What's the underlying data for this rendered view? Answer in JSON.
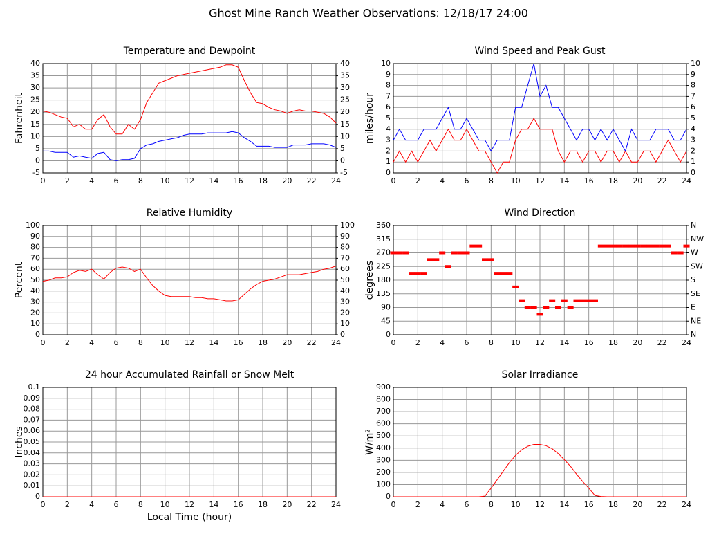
{
  "title": "Ghost Mine Ranch Weather Observations: 12/18/17 24:00",
  "chart_data": [
    {
      "type": "line",
      "title": "Temperature and Dewpoint",
      "ylabel": "Fahrenheit",
      "grid": true,
      "xlim": [
        0,
        24
      ],
      "xticks": [
        0,
        2,
        4,
        6,
        8,
        10,
        12,
        14,
        16,
        18,
        20,
        22,
        24
      ],
      "ylim": [
        -5,
        40
      ],
      "yticks": [
        -5,
        0,
        5,
        10,
        15,
        20,
        25,
        30,
        35,
        40
      ],
      "y2lim": [
        -5,
        40
      ],
      "y2ticks": [
        -5,
        0,
        5,
        10,
        15,
        20,
        25,
        30,
        35,
        40
      ],
      "x": [
        0,
        0.5,
        1,
        1.5,
        2,
        2.5,
        3,
        3.5,
        4,
        4.5,
        5,
        5.5,
        6,
        6.5,
        7,
        7.5,
        8,
        8.5,
        9,
        9.5,
        10,
        10.5,
        11,
        11.5,
        12,
        12.5,
        13,
        13.5,
        14,
        14.5,
        15,
        15.5,
        16,
        16.5,
        17,
        17.5,
        18,
        18.5,
        19,
        19.5,
        20,
        20.5,
        21,
        21.5,
        22,
        22.5,
        23,
        23.5,
        24
      ],
      "series": [
        {
          "color": "#ff0000",
          "values": [
            20.5,
            20,
            19,
            18,
            17.5,
            14,
            15,
            13,
            13,
            17,
            19,
            14,
            11,
            11,
            15,
            13,
            17,
            24,
            28,
            32,
            33,
            34,
            35,
            35.5,
            36,
            36.5,
            37,
            37.5,
            38,
            38.5,
            39.5,
            39.5,
            38.5,
            33,
            28,
            24,
            23.5,
            22,
            21,
            20.5,
            19.5,
            20.5,
            21,
            20.5,
            20.5,
            20,
            19.5,
            18,
            15.5
          ]
        },
        {
          "color": "#0000ff",
          "values": [
            4,
            4,
            3.5,
            3.5,
            3.5,
            1.5,
            2,
            1.5,
            1,
            3,
            3.5,
            0.5,
            0,
            0.5,
            0.5,
            1,
            5,
            6.5,
            7,
            8,
            8.5,
            9,
            9.5,
            10.5,
            11,
            11,
            11,
            11.5,
            11.5,
            11.5,
            11.5,
            12,
            11.5,
            9.5,
            8,
            6,
            6,
            6,
            5.5,
            5.5,
            5.5,
            6.5,
            6.5,
            6.5,
            7,
            7,
            7,
            6.5,
            5.5
          ]
        }
      ]
    },
    {
      "type": "line",
      "title": "Wind Speed and Peak Gust",
      "ylabel": "miles/hour",
      "grid": true,
      "xlim": [
        0,
        24
      ],
      "xticks": [
        0,
        2,
        4,
        6,
        8,
        10,
        12,
        14,
        16,
        18,
        20,
        22,
        24
      ],
      "ylim": [
        0,
        10
      ],
      "yticks": [
        0,
        1,
        2,
        3,
        4,
        5,
        6,
        7,
        8,
        9,
        10
      ],
      "y2lim": [
        0,
        10
      ],
      "y2ticks": [
        0,
        1,
        2,
        3,
        4,
        5,
        6,
        7,
        8,
        9,
        10
      ],
      "x": [
        0,
        0.5,
        1,
        1.5,
        2,
        2.5,
        3,
        3.5,
        4,
        4.5,
        5,
        5.5,
        6,
        6.5,
        7,
        7.5,
        8,
        8.5,
        9,
        9.5,
        10,
        10.5,
        11,
        11.5,
        12,
        12.5,
        13,
        13.5,
        14,
        14.5,
        15,
        15.5,
        16,
        16.5,
        17,
        17.5,
        18,
        18.5,
        19,
        19.5,
        20,
        20.5,
        21,
        21.5,
        22,
        22.5,
        23,
        23.5,
        24
      ],
      "series": [
        {
          "color": "#ff0000",
          "values": [
            1,
            2,
            1,
            2,
            1,
            2,
            3,
            2,
            3,
            4,
            3,
            3,
            4,
            3,
            2,
            2,
            1,
            0,
            1,
            1,
            3,
            4,
            4,
            5,
            4,
            4,
            4,
            2,
            1,
            2,
            2,
            1,
            2,
            2,
            1,
            2,
            2,
            1,
            2,
            1,
            1,
            2,
            2,
            1,
            2,
            3,
            2,
            1,
            2
          ]
        },
        {
          "color": "#0000ff",
          "values": [
            3,
            4,
            3,
            3,
            3,
            4,
            4,
            4,
            5,
            6,
            4,
            4,
            5,
            4,
            3,
            3,
            2,
            3,
            3,
            3,
            6,
            6,
            8,
            10,
            7,
            8,
            6,
            6,
            5,
            4,
            3,
            4,
            4,
            3,
            4,
            3,
            4,
            3,
            2,
            4,
            3,
            3,
            3,
            4,
            4,
            4,
            3,
            3,
            4
          ]
        }
      ]
    },
    {
      "type": "line",
      "title": "Relative Humidity",
      "ylabel": "Percent",
      "grid": true,
      "xlim": [
        0,
        24
      ],
      "xticks": [
        0,
        2,
        4,
        6,
        8,
        10,
        12,
        14,
        16,
        18,
        20,
        22,
        24
      ],
      "ylim": [
        0,
        100
      ],
      "yticks": [
        0,
        10,
        20,
        30,
        40,
        50,
        60,
        70,
        80,
        90,
        100
      ],
      "y2lim": [
        0,
        100
      ],
      "y2ticks": [
        0,
        10,
        20,
        30,
        40,
        50,
        60,
        70,
        80,
        90,
        100
      ],
      "x": [
        0,
        0.5,
        1,
        1.5,
        2,
        2.5,
        3,
        3.5,
        4,
        4.5,
        5,
        5.5,
        6,
        6.5,
        7,
        7.5,
        8,
        8.5,
        9,
        9.5,
        10,
        10.5,
        11,
        11.5,
        12,
        12.5,
        13,
        13.5,
        14,
        14.5,
        15,
        15.5,
        16,
        16.5,
        17,
        17.5,
        18,
        18.5,
        19,
        19.5,
        20,
        20.5,
        21,
        21.5,
        22,
        22.5,
        23,
        23.5,
        24
      ],
      "series": [
        {
          "color": "#ff0000",
          "values": [
            49,
            50,
            52,
            52,
            53,
            57,
            59,
            58,
            60,
            55,
            51,
            57,
            61,
            62,
            61,
            58,
            60,
            52,
            45,
            40,
            36,
            35,
            35,
            35,
            35,
            34,
            34,
            33,
            33,
            32,
            31,
            31,
            32,
            37,
            42,
            46,
            49,
            50,
            51,
            53,
            55,
            55,
            55,
            56,
            57,
            58,
            60,
            61,
            63
          ]
        }
      ]
    },
    {
      "type": "scatter",
      "title": "Wind Direction",
      "ylabel": "degrees",
      "grid": true,
      "xlim": [
        0,
        24
      ],
      "xticks": [
        0,
        2,
        4,
        6,
        8,
        10,
        12,
        14,
        16,
        18,
        20,
        22,
        24
      ],
      "ylim": [
        0,
        360
      ],
      "yticks": [
        0,
        45,
        90,
        135,
        180,
        225,
        270,
        315,
        360
      ],
      "y2lim": [
        0,
        360
      ],
      "y2ticks": [
        {
          "value": 0,
          "label": "N"
        },
        {
          "value": 45,
          "label": "NE"
        },
        {
          "value": 90,
          "label": "E"
        },
        {
          "value": 135,
          "label": "SE"
        },
        {
          "value": 180,
          "label": "S"
        },
        {
          "value": 225,
          "label": "SW"
        },
        {
          "value": 270,
          "label": "W"
        },
        {
          "value": 315,
          "label": "NW"
        },
        {
          "value": 360,
          "label": "N"
        }
      ],
      "x": [
        0,
        0.5,
        1,
        1.5,
        2,
        2.5,
        3,
        3.5,
        4,
        4.5,
        5,
        5.5,
        6,
        6.5,
        7,
        7.5,
        8,
        8.5,
        9,
        9.5,
        10,
        10.5,
        11,
        11.5,
        12,
        12.5,
        13,
        13.5,
        14,
        14.5,
        15,
        15.5,
        16,
        16.5,
        17,
        17.5,
        18,
        18.5,
        19,
        19.5,
        20,
        20.5,
        21,
        21.5,
        22,
        22.5,
        23,
        23.5,
        24
      ],
      "series": [
        {
          "color": "#ff0000",
          "values": [
            270,
            270,
            270,
            202.5,
            202.5,
            202.5,
            247.5,
            247.5,
            270,
            225,
            270,
            270,
            270,
            292.5,
            292.5,
            247.5,
            247.5,
            202.5,
            202.5,
            202.5,
            157.5,
            112.5,
            90,
            90,
            67.5,
            90,
            112.5,
            90,
            112.5,
            90,
            112.5,
            112.5,
            112.5,
            112.5,
            292.5,
            292.5,
            292.5,
            292.5,
            292.5,
            292.5,
            292.5,
            292.5,
            292.5,
            292.5,
            292.5,
            292.5,
            270,
            270,
            292.5
          ]
        }
      ]
    },
    {
      "type": "line",
      "title": "24 hour Accumulated Rainfall or Snow Melt",
      "ylabel": "Inches",
      "xlabel": "Local Time (hour)",
      "grid": true,
      "xlim": [
        0,
        24
      ],
      "xticks": [
        0,
        2,
        4,
        6,
        8,
        10,
        12,
        14,
        16,
        18,
        20,
        22,
        24
      ],
      "ylim": [
        0,
        0.1
      ],
      "yticks": [
        0.0,
        {
          "value": 0,
          "label": "0.0"
        },
        0.01,
        0.02,
        0.03,
        0.04,
        0.05,
        0.06,
        0.07,
        0.08,
        0.09,
        0.1
      ],
      "x": [
        0,
        24
      ],
      "series": [
        {
          "color": "#ff0000",
          "values": [
            0,
            0
          ]
        }
      ]
    },
    {
      "type": "line",
      "title": "Solar Irradiance",
      "ylabel": "W/m²",
      "grid": true,
      "xlim": [
        0,
        24
      ],
      "xticks": [
        0,
        2,
        4,
        6,
        8,
        10,
        12,
        14,
        16,
        18,
        20,
        22,
        24
      ],
      "ylim": [
        0,
        900
      ],
      "yticks": [
        0,
        100,
        200,
        300,
        400,
        500,
        600,
        700,
        800,
        900
      ],
      "x": [
        0,
        0.5,
        1,
        1.5,
        2,
        2.5,
        3,
        3.5,
        4,
        4.5,
        5,
        5.5,
        6,
        6.5,
        7,
        7.5,
        8,
        8.5,
        9,
        9.5,
        10,
        10.5,
        11,
        11.5,
        12,
        12.5,
        13,
        13.5,
        14,
        14.5,
        15,
        15.5,
        16,
        16.5,
        17,
        17.5,
        18,
        18.5,
        19,
        19.5,
        20,
        20.5,
        21,
        21.5,
        22,
        22.5,
        23,
        23.5,
        24
      ],
      "series": [
        {
          "color": "#ff0000",
          "values": [
            0,
            0,
            0,
            0,
            0,
            0,
            0,
            0,
            0,
            0,
            0,
            0,
            0,
            0,
            0,
            5,
            70,
            140,
            210,
            280,
            340,
            385,
            415,
            430,
            430,
            420,
            395,
            355,
            305,
            250,
            185,
            125,
            70,
            10,
            2,
            0,
            0,
            0,
            0,
            0,
            0,
            0,
            0,
            0,
            0,
            0,
            0,
            0,
            0
          ]
        }
      ]
    }
  ]
}
